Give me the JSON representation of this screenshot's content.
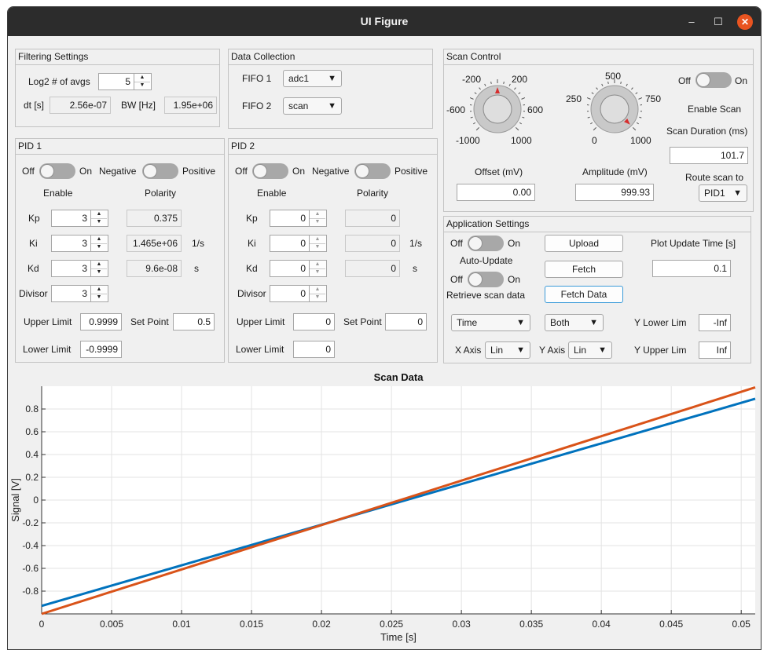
{
  "window": {
    "title": "UI Figure",
    "minimize": "–",
    "maximize": "☐",
    "close": "✕"
  },
  "filtering": {
    "title": "Filtering Settings",
    "log2_label": "Log2 # of avgs",
    "log2_value": "5",
    "dt_label": "dt [s]",
    "dt_value": "2.56e-07",
    "bw_label": "BW [Hz]",
    "bw_value": "1.95e+06"
  },
  "data_collection": {
    "title": "Data Collection",
    "fifo1_label": "FIFO 1",
    "fifo1_value": "adc1",
    "fifo2_label": "FIFO 2",
    "fifo2_value": "scan"
  },
  "scan_control": {
    "title": "Scan Control",
    "offset_knob": {
      "ticks": [
        "-200",
        "200",
        "-600",
        "600",
        "-1000",
        "1000"
      ],
      "value": 0,
      "min": -1000,
      "max": 1000
    },
    "amplitude_knob": {
      "ticks": [
        "500",
        "250",
        "750",
        "0",
        "1000"
      ],
      "value": 999.93,
      "min": 0,
      "max": 1000
    },
    "offset_label": "Offset (mV)",
    "offset_value": "0.00",
    "amplitude_label": "Amplitude (mV)",
    "amplitude_value": "999.93",
    "toggle_off": "Off",
    "toggle_on": "On",
    "toggle_state": "off",
    "enable_scan": "Enable Scan",
    "duration_label": "Scan Duration (ms)",
    "duration_value": "101.7",
    "route_label": "Route scan to",
    "route_value": "PID1"
  },
  "pid1": {
    "title": "PID 1",
    "off": "Off",
    "on": "On",
    "negative": "Negative",
    "positive": "Positive",
    "enable": "Enable",
    "polarity": "Polarity",
    "kp_label": "Kp",
    "kp": "3",
    "kp_out": "0.375",
    "ki_label": "Ki",
    "ki": "3",
    "ki_out": "1.465e+06",
    "ki_unit": "1/s",
    "kd_label": "Kd",
    "kd": "3",
    "kd_out": "9.6e-08",
    "kd_unit": "s",
    "divisor_label": "Divisor",
    "divisor": "3",
    "upper_label": "Upper Limit",
    "upper": "0.9999",
    "setpoint_label": "Set Point",
    "setpoint": "0.5",
    "lower_label": "Lower Limit",
    "lower": "-0.9999"
  },
  "pid2": {
    "title": "PID 2",
    "off": "Off",
    "on": "On",
    "negative": "Negative",
    "positive": "Positive",
    "enable": "Enable",
    "polarity": "Polarity",
    "kp_label": "Kp",
    "kp": "0",
    "kp_out": "0",
    "ki_label": "Ki",
    "ki": "0",
    "ki_out": "0",
    "ki_unit": "1/s",
    "kd_label": "Kd",
    "kd": "0",
    "kd_out": "0",
    "kd_unit": "s",
    "divisor_label": "Divisor",
    "divisor": "0",
    "upper_label": "Upper Limit",
    "upper": "0",
    "setpoint_label": "Set Point",
    "setpoint": "0",
    "lower_label": "Lower Limit",
    "lower": "0"
  },
  "app_settings": {
    "title": "Application Settings",
    "off": "Off",
    "on": "On",
    "auto_update": "Auto-Update",
    "retrieve": "Retrieve scan data",
    "upload": "Upload",
    "fetch": "Fetch",
    "fetch_data": "Fetch Data",
    "plot_update_label": "Plot Update Time [s]",
    "plot_update_value": "0.1",
    "mode_value": "Time",
    "channels_value": "Both",
    "ylower_label": "Y Lower Lim",
    "ylower_value": "-Inf",
    "xaxis_label": "X Axis",
    "xaxis_value": "Lin",
    "yaxis_label": "Y Axis",
    "yaxis_value": "Lin",
    "yupper_label": "Y Upper Lim",
    "yupper_value": "Inf"
  },
  "chart_data": {
    "type": "line",
    "title": "Scan Data",
    "xlabel": "Time [s]",
    "ylabel": "Signal [V]",
    "xlim": [
      0,
      0.051
    ],
    "ylim": [
      -1,
      1
    ],
    "xticks": [
      "0",
      "0.005",
      "0.01",
      "0.015",
      "0.02",
      "0.025",
      "0.03",
      "0.035",
      "0.04",
      "0.045",
      "0.05"
    ],
    "yticks": [
      "0.8",
      "0.6",
      "0.4",
      "0.2",
      "0",
      "-0.2",
      "-0.4",
      "-0.6",
      "-0.8"
    ],
    "grid": true,
    "series": [
      {
        "x": [
          0,
          0.051
        ],
        "y": [
          -0.93,
          0.89
        ],
        "color": "#0072bd"
      },
      {
        "x": [
          0,
          0.051
        ],
        "y": [
          -1.0,
          0.99
        ],
        "color": "#d95319"
      }
    ]
  }
}
